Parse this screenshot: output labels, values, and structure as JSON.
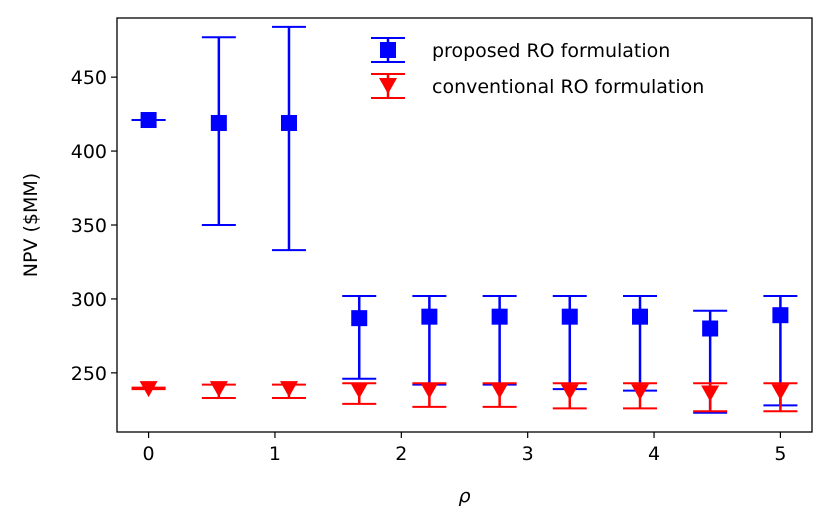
{
  "chart_data": {
    "type": "scatter",
    "title": "",
    "xlabel": "ρ",
    "ylabel": "NPV ($MM)",
    "xlim": [
      -0.25,
      5.25
    ],
    "ylim": [
      210,
      490
    ],
    "x_ticks": [
      0,
      1,
      2,
      3,
      4,
      5
    ],
    "y_ticks": [
      250,
      300,
      350,
      400,
      450
    ],
    "grid": false,
    "legend_position": "top-right",
    "series": [
      {
        "name": "proposed RO formulation",
        "color": "#0000ff",
        "marker": "square",
        "points": [
          {
            "x": 0.0,
            "y": 421,
            "low": 421,
            "high": 421
          },
          {
            "x": 0.556,
            "y": 419,
            "low": 350,
            "high": 477
          },
          {
            "x": 1.111,
            "y": 419,
            "low": 333,
            "high": 484
          },
          {
            "x": 1.667,
            "y": 287,
            "low": 246,
            "high": 302
          },
          {
            "x": 2.222,
            "y": 288,
            "low": 242,
            "high": 302
          },
          {
            "x": 2.778,
            "y": 288,
            "low": 242,
            "high": 302
          },
          {
            "x": 3.333,
            "y": 288,
            "low": 239,
            "high": 302
          },
          {
            "x": 3.889,
            "y": 288,
            "low": 238,
            "high": 302
          },
          {
            "x": 4.444,
            "y": 280,
            "low": 223,
            "high": 292
          },
          {
            "x": 5.0,
            "y": 289,
            "low": 228,
            "high": 302
          }
        ]
      },
      {
        "name": "conventional RO formulation",
        "color": "#ff0000",
        "marker": "triangle-down",
        "points": [
          {
            "x": 0.0,
            "y": 239,
            "low": 239,
            "high": 240
          },
          {
            "x": 0.556,
            "y": 239,
            "low": 233,
            "high": 242
          },
          {
            "x": 1.111,
            "y": 239,
            "low": 233,
            "high": 242
          },
          {
            "x": 1.667,
            "y": 238,
            "low": 229,
            "high": 243
          },
          {
            "x": 2.222,
            "y": 238,
            "low": 227,
            "high": 243
          },
          {
            "x": 2.778,
            "y": 238,
            "low": 227,
            "high": 243
          },
          {
            "x": 3.333,
            "y": 237,
            "low": 226,
            "high": 243
          },
          {
            "x": 3.889,
            "y": 237,
            "low": 226,
            "high": 243
          },
          {
            "x": 4.444,
            "y": 236,
            "low": 224,
            "high": 243
          },
          {
            "x": 5.0,
            "y": 237,
            "low": 224,
            "high": 243
          }
        ]
      }
    ]
  }
}
